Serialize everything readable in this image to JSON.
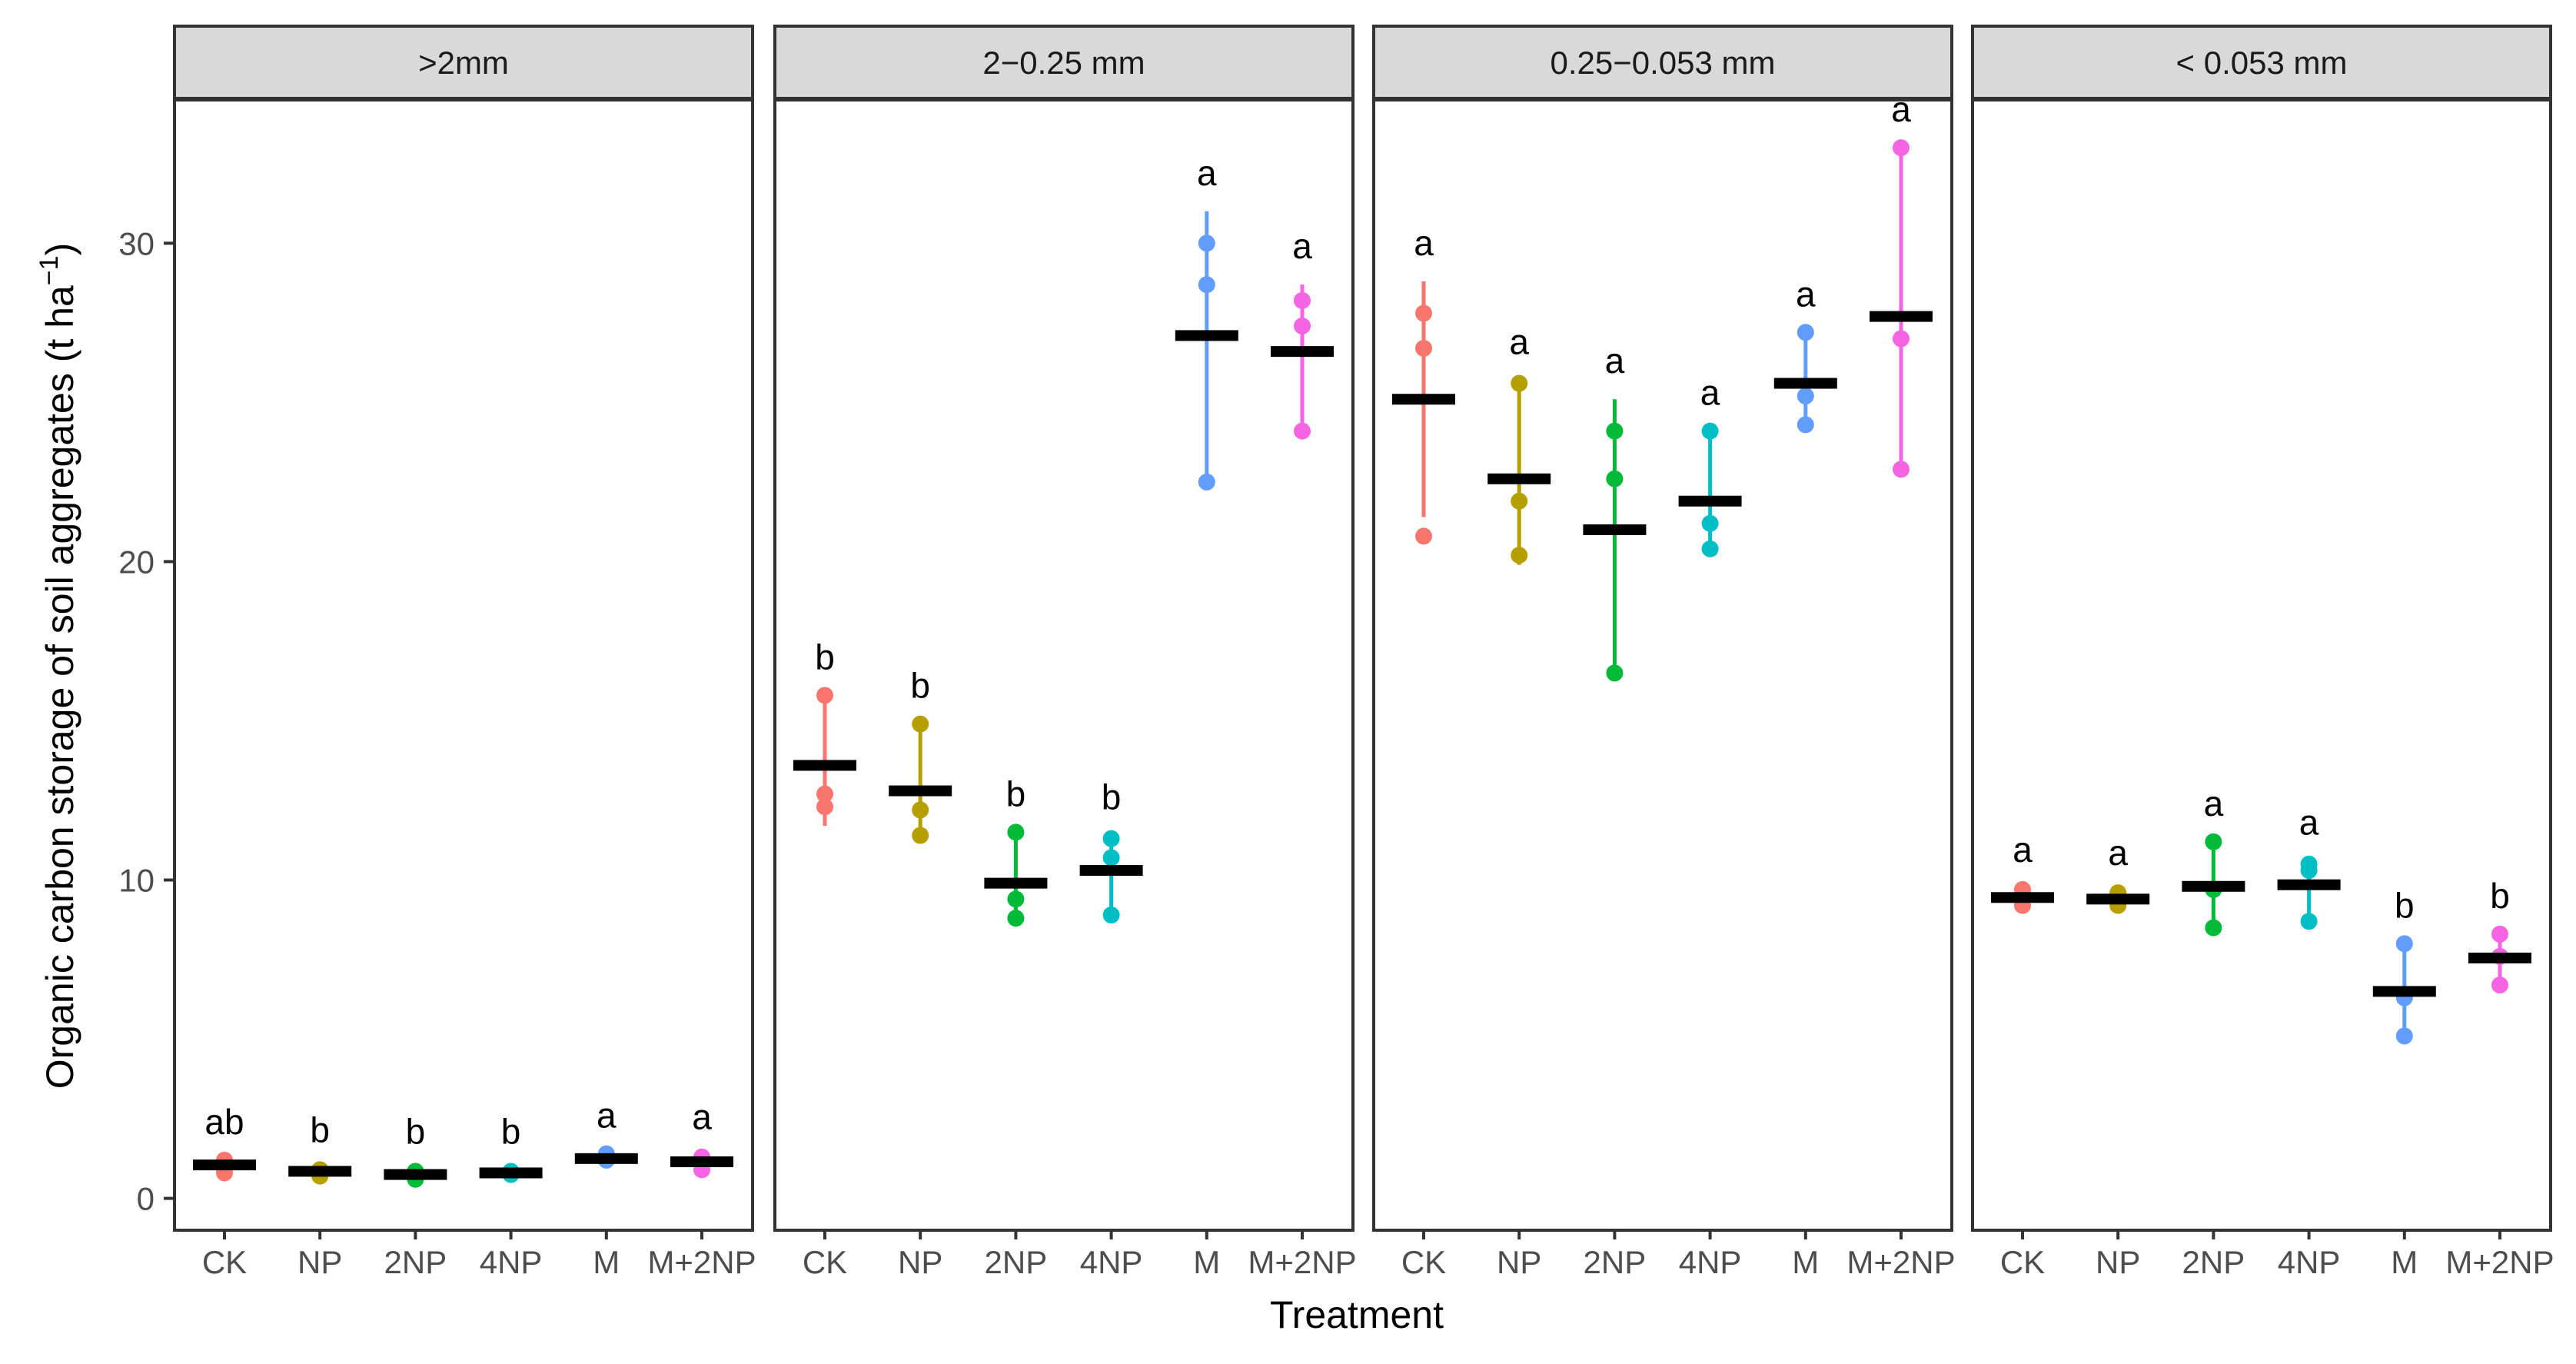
{
  "chart_data": {
    "type": "scatter",
    "title": "",
    "xlabel": "Treatment",
    "ylabel_main": "Organic carbon storage of soil aggregates (t ha",
    "ylabel_sup": "−1",
    "ylabel_close": ")",
    "ylim": [
      -1,
      34.5
    ],
    "yticks": [
      0,
      10,
      20,
      30
    ],
    "ytick_labels": [
      "0",
      "10",
      "20",
      "30"
    ],
    "categories": [
      "CK",
      "NP",
      "2NP",
      "4NP",
      "M",
      "M+2NP"
    ],
    "series_colors": {
      "CK": "#F8766D",
      "NP": "#B79F00",
      "2NP": "#00BA38",
      "4NP": "#00BFC4",
      "M": "#619CFF",
      "M+2NP": "#F564E3"
    },
    "mean_color": "#000000",
    "panels": [
      {
        "strip": ">2mm",
        "groups": [
          {
            "treatment": "CK",
            "points": [
              0.8,
              1.0,
              1.2
            ],
            "mean": 1.05,
            "err_low": 0.8,
            "err_high": 1.2,
            "sig": "ab"
          },
          {
            "treatment": "NP",
            "points": [
              0.7,
              0.9,
              0.9
            ],
            "mean": 0.85,
            "err_low": 0.7,
            "err_high": 0.95,
            "sig": "b"
          },
          {
            "treatment": "2NP",
            "points": [
              0.6,
              0.75,
              0.85
            ],
            "mean": 0.75,
            "err_low": 0.6,
            "err_high": 0.9,
            "sig": "b"
          },
          {
            "treatment": "4NP",
            "points": [
              0.75,
              0.8,
              0.85
            ],
            "mean": 0.8,
            "err_low": 0.7,
            "err_high": 0.9,
            "sig": "b"
          },
          {
            "treatment": "M",
            "points": [
              1.2,
              1.3,
              1.4
            ],
            "mean": 1.25,
            "err_low": 1.1,
            "err_high": 1.4,
            "sig": "a"
          },
          {
            "treatment": "M+2NP",
            "points": [
              0.9,
              1.2,
              1.3
            ],
            "mean": 1.15,
            "err_low": 0.9,
            "err_high": 1.35,
            "sig": "a"
          }
        ]
      },
      {
        "strip": "2−0.25 mm",
        "groups": [
          {
            "treatment": "CK",
            "points": [
              12.3,
              12.7,
              15.8
            ],
            "mean": 13.6,
            "err_low": 11.7,
            "err_high": 15.8,
            "sig": "b"
          },
          {
            "treatment": "NP",
            "points": [
              11.4,
              12.2,
              14.9
            ],
            "mean": 12.8,
            "err_low": 11.2,
            "err_high": 14.9,
            "sig": "b"
          },
          {
            "treatment": "2NP",
            "points": [
              8.8,
              9.4,
              11.5
            ],
            "mean": 9.9,
            "err_low": 8.7,
            "err_high": 11.5,
            "sig": "b"
          },
          {
            "treatment": "4NP",
            "points": [
              8.9,
              10.7,
              11.3
            ],
            "mean": 10.3,
            "err_low": 8.9,
            "err_high": 11.4,
            "sig": "b"
          },
          {
            "treatment": "M",
            "points": [
              22.5,
              28.7,
              30.0
            ],
            "mean": 27.1,
            "err_low": 22.5,
            "err_high": 31.0,
            "sig": "a"
          },
          {
            "treatment": "M+2NP",
            "points": [
              24.1,
              27.4,
              28.2
            ],
            "mean": 26.6,
            "err_low": 24.1,
            "err_high": 28.7,
            "sig": "a"
          }
        ]
      },
      {
        "strip": "0.25−0.053 mm",
        "groups": [
          {
            "treatment": "CK",
            "points": [
              20.8,
              26.7,
              27.8
            ],
            "mean": 25.1,
            "err_low": 21.4,
            "err_high": 28.8,
            "sig": "a"
          },
          {
            "treatment": "NP",
            "points": [
              20.2,
              21.9,
              25.6
            ],
            "mean": 22.6,
            "err_low": 19.9,
            "err_high": 25.7,
            "sig": "a"
          },
          {
            "treatment": "2NP",
            "points": [
              16.5,
              22.6,
              24.1
            ],
            "mean": 21.0,
            "err_low": 16.6,
            "err_high": 25.1,
            "sig": "a"
          },
          {
            "treatment": "4NP",
            "points": [
              20.4,
              21.2,
              24.1
            ],
            "mean": 21.9,
            "err_low": 20.2,
            "err_high": 24.1,
            "sig": "a"
          },
          {
            "treatment": "M",
            "points": [
              24.3,
              25.2,
              27.2
            ],
            "mean": 25.6,
            "err_low": 24.3,
            "err_high": 27.2,
            "sig": "a"
          },
          {
            "treatment": "M+2NP",
            "points": [
              22.9,
              27.0,
              33.0
            ],
            "mean": 27.7,
            "err_low": 22.9,
            "err_high": 33.0,
            "sig": "a"
          }
        ]
      },
      {
        "strip": "< 0.053 mm",
        "groups": [
          {
            "treatment": "CK",
            "points": [
              9.2,
              9.4,
              9.7
            ],
            "mean": 9.45,
            "err_low": 9.2,
            "err_high": 9.75,
            "sig": "a"
          },
          {
            "treatment": "NP",
            "points": [
              9.2,
              9.4,
              9.6
            ],
            "mean": 9.4,
            "err_low": 9.15,
            "err_high": 9.65,
            "sig": "a"
          },
          {
            "treatment": "2NP",
            "points": [
              8.5,
              9.7,
              11.2
            ],
            "mean": 9.8,
            "err_low": 8.5,
            "err_high": 11.2,
            "sig": "a"
          },
          {
            "treatment": "4NP",
            "points": [
              8.7,
              10.3,
              10.5
            ],
            "mean": 9.85,
            "err_low": 8.6,
            "err_high": 10.6,
            "sig": "a"
          },
          {
            "treatment": "M",
            "points": [
              5.1,
              6.3,
              8.0
            ],
            "mean": 6.5,
            "err_low": 5.1,
            "err_high": 8.0,
            "sig": "b"
          },
          {
            "treatment": "M+2NP",
            "points": [
              6.7,
              7.6,
              8.3
            ],
            "mean": 7.55,
            "err_low": 6.6,
            "err_high": 8.3,
            "sig": "b"
          }
        ]
      }
    ]
  }
}
